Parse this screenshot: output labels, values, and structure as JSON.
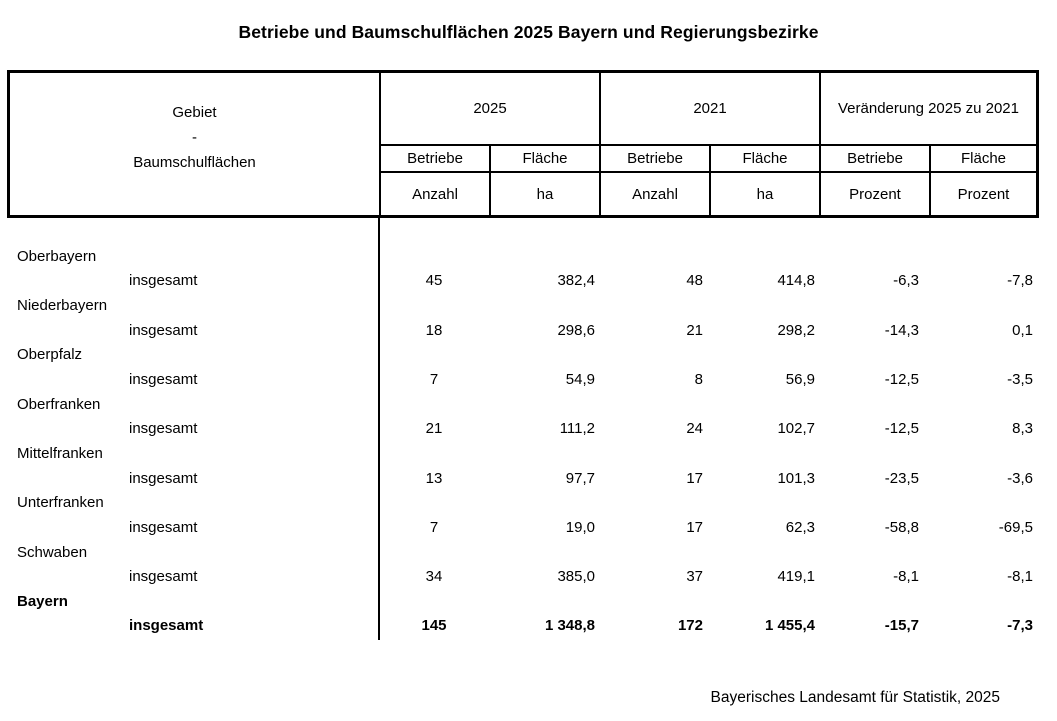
{
  "title": "Betriebe und Baumschulflächen 2025 Bayern und Regierungsbezirke",
  "table": {
    "gebiet_header": {
      "line1": "Gebiet",
      "line2": "-",
      "line3": "Baumschulflächen"
    },
    "groups": [
      {
        "label": "2025",
        "cols": [
          {
            "name": "Betriebe",
            "unit": "Anzahl"
          },
          {
            "name": "Fläche",
            "unit": "ha"
          }
        ]
      },
      {
        "label": "2021",
        "cols": [
          {
            "name": "Betriebe",
            "unit": "Anzahl"
          },
          {
            "name": "Fläche",
            "unit": "ha"
          }
        ]
      },
      {
        "label": "Veränderung 2025 zu 2021",
        "cols": [
          {
            "name": "Betriebe",
            "unit": "Prozent"
          },
          {
            "name": "Fläche",
            "unit": "Prozent"
          }
        ]
      }
    ],
    "rows": [
      {
        "region": "Oberbayern",
        "label": "insgesamt",
        "bold": false,
        "values": [
          "45",
          "382,4",
          "48",
          "414,8",
          "-6,3",
          "-7,8"
        ]
      },
      {
        "region": "Niederbayern",
        "label": "insgesamt",
        "bold": false,
        "values": [
          "18",
          "298,6",
          "21",
          "298,2",
          "-14,3",
          "0,1"
        ]
      },
      {
        "region": "Oberpfalz",
        "label": "insgesamt",
        "bold": false,
        "values": [
          "7",
          "54,9",
          "8",
          "56,9",
          "-12,5",
          "-3,5"
        ]
      },
      {
        "region": "Oberfranken",
        "label": "insgesamt",
        "bold": false,
        "values": [
          "21",
          "111,2",
          "24",
          "102,7",
          "-12,5",
          "8,3"
        ]
      },
      {
        "region": "Mittelfranken",
        "label": "insgesamt",
        "bold": false,
        "values": [
          "13",
          "97,7",
          "17",
          "101,3",
          "-23,5",
          "-3,6"
        ]
      },
      {
        "region": "Unterfranken",
        "label": "insgesamt",
        "bold": false,
        "values": [
          "7",
          "19,0",
          "17",
          "62,3",
          "-58,8",
          "-69,5"
        ]
      },
      {
        "region": "Schwaben",
        "label": "insgesamt",
        "bold": false,
        "values": [
          "34",
          "385,0",
          "37",
          "419,1",
          "-8,1",
          "-8,1"
        ]
      },
      {
        "region": "Bayern",
        "label": "insgesamt",
        "bold": true,
        "values": [
          "145",
          "1 348,8",
          "172",
          "1 455,4",
          "-15,7",
          "-7,3"
        ]
      }
    ]
  },
  "footer": "Bayerisches Landesamt für Statistik, 2025",
  "colors": {
    "text": "#000000",
    "border": "#000000",
    "background": "#ffffff"
  }
}
